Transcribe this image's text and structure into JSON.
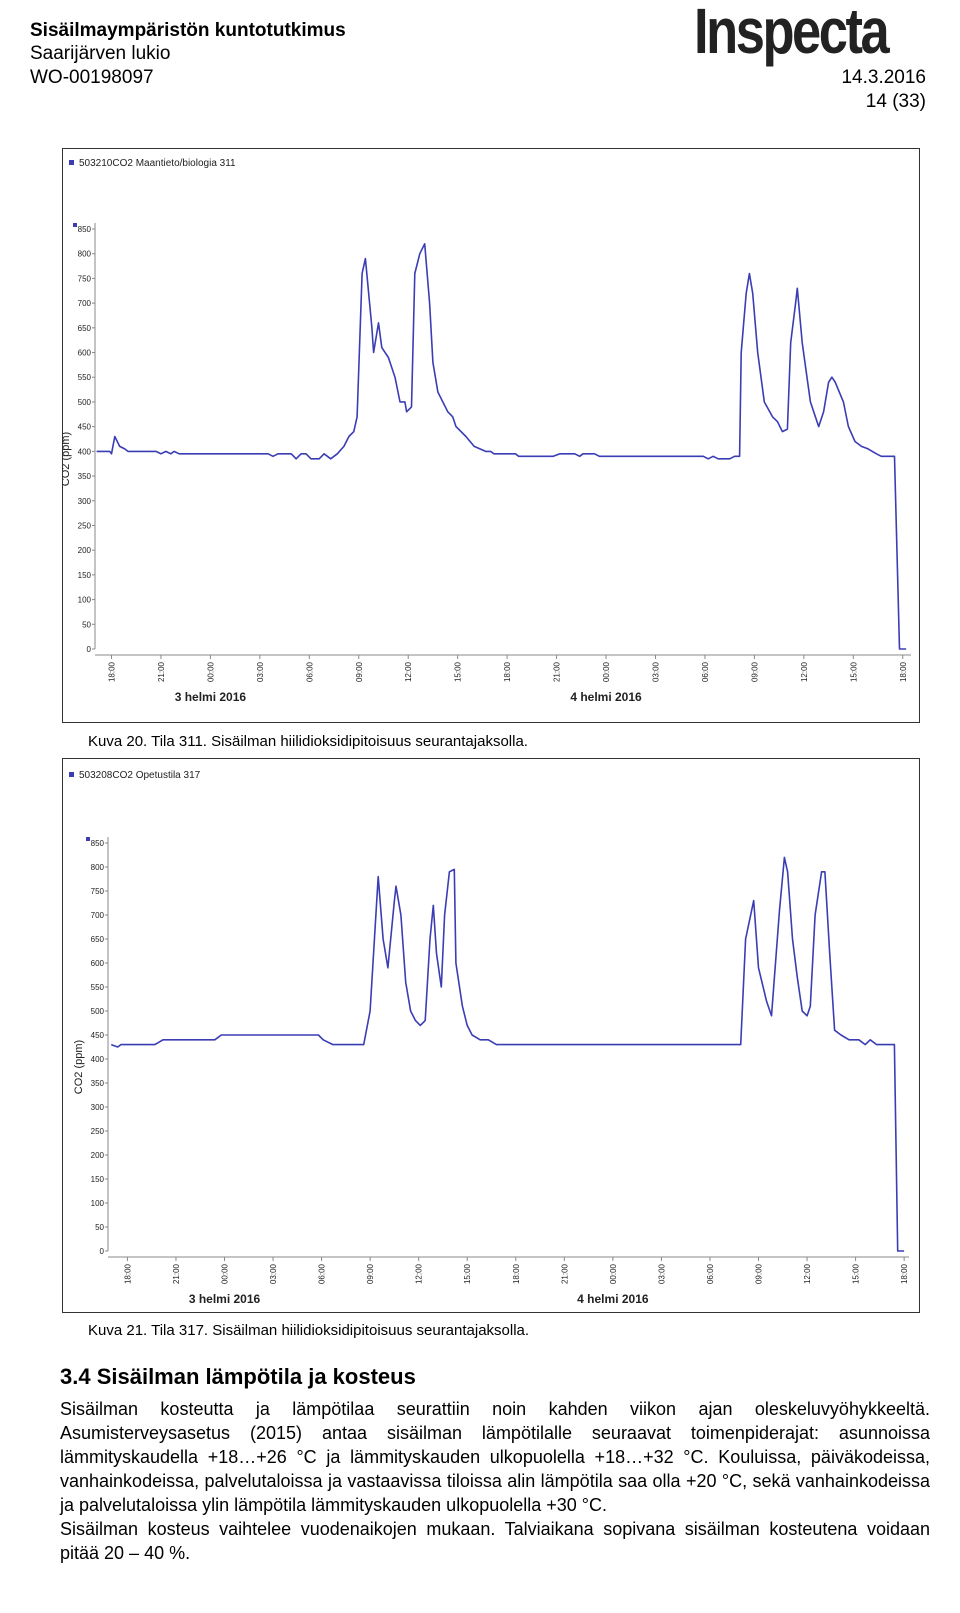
{
  "header": {
    "title": "Sisäilmaympäristön kuntotutkimus",
    "subtitle": "Saarijärven lukio",
    "work_order": "WO-00198097",
    "logo": "Inspecta",
    "date": "14.3.2016",
    "page": "14 (33)"
  },
  "chart_data": [
    {
      "type": "line",
      "series": [
        {
          "name": "503210CO2 Maantieto/biologia 311",
          "color": "#3a3db4",
          "values": [
            400,
            400,
            395,
            430,
            410,
            405,
            400,
            400,
            395,
            400,
            395,
            400,
            395,
            395,
            390,
            395,
            395,
            385,
            395,
            395,
            385,
            385,
            395,
            385,
            395,
            410,
            430,
            440,
            470,
            760,
            790,
            650,
            600,
            660,
            610,
            590,
            550,
            500,
            500,
            480,
            490,
            760,
            800,
            820,
            700,
            580,
            520,
            480,
            470,
            450,
            430,
            410,
            400,
            400,
            395,
            395,
            390,
            390,
            395,
            395,
            390,
            395,
            395,
            390,
            390,
            385,
            390,
            385,
            385,
            390,
            390,
            600,
            720,
            760,
            720,
            600,
            500,
            470,
            460,
            440,
            445,
            620,
            700,
            730,
            620,
            500,
            450,
            480,
            540,
            550,
            540,
            500,
            450,
            420,
            410,
            405,
            395,
            390,
            390,
            0,
            0
          ]
        }
      ],
      "x": [
        -0.9,
        -0.1,
        0,
        0.2,
        0.5,
        0.8,
        1.0,
        2.7,
        3.0,
        3.3,
        3.6,
        3.8,
        4.1,
        9.5,
        9.8,
        10.1,
        10.9,
        11.2,
        11.5,
        11.8,
        12.1,
        12.6,
        12.9,
        13.3,
        13.7,
        14.1,
        14.4,
        14.7,
        14.9,
        15.2,
        15.4,
        15.8,
        15.9,
        16.2,
        16.4,
        16.8,
        17.2,
        17.5,
        17.8,
        17.9,
        18.2,
        18.4,
        18.7,
        19.0,
        19.3,
        19.5,
        19.8,
        20.4,
        20.7,
        20.9,
        21.5,
        22.0,
        22.7,
        23.0,
        23.2,
        24.5,
        24.7,
        26.8,
        27.2,
        28.1,
        28.4,
        28.6,
        29.3,
        29.6,
        35.9,
        36.2,
        36.5,
        36.8,
        37.5,
        37.8,
        38.1,
        38.2,
        38.5,
        38.7,
        38.9,
        39.2,
        39.6,
        40.1,
        40.4,
        40.7,
        41.0,
        41.2,
        41.5,
        41.6,
        41.9,
        42.4,
        42.9,
        43.2,
        43.5,
        43.7,
        43.9,
        44.4,
        44.7,
        45.1,
        45.5,
        45.9,
        46.4,
        46.7,
        47.5,
        47.8,
        48.2
      ],
      "ylabel": "CO2 (ppm)",
      "xlim": [
        -1,
        48.5
      ],
      "ylim": [
        0,
        850
      ],
      "yticks": [
        0,
        50,
        100,
        150,
        200,
        250,
        300,
        350,
        400,
        450,
        500,
        550,
        600,
        650,
        700,
        750,
        800,
        850
      ],
      "xticks": [
        {
          "value": 0,
          "label": "18:00"
        },
        {
          "value": 3,
          "label": "21:00"
        },
        {
          "value": 6,
          "label": "00:00"
        },
        {
          "value": 9,
          "label": "03:00"
        },
        {
          "value": 12,
          "label": "06:00"
        },
        {
          "value": 15,
          "label": "09:00"
        },
        {
          "value": 18,
          "label": "12:00"
        },
        {
          "value": 21,
          "label": "15:00"
        },
        {
          "value": 24,
          "label": "18:00"
        },
        {
          "value": 27,
          "label": "21:00"
        },
        {
          "value": 30,
          "label": "00:00"
        },
        {
          "value": 33,
          "label": "03:00"
        },
        {
          "value": 36,
          "label": "06:00"
        },
        {
          "value": 39,
          "label": "09:00"
        },
        {
          "value": 42,
          "label": "12:00"
        },
        {
          "value": 45,
          "label": "15:00"
        },
        {
          "value": 48,
          "label": "18:00"
        }
      ],
      "date_ticks": [
        {
          "value": 6,
          "label": "3 helmi 2016"
        },
        {
          "value": 30,
          "label": "4 helmi 2016"
        }
      ],
      "grid": false
    },
    {
      "type": "line",
      "series": [
        {
          "name": "503208CO2 Opetustila 317",
          "color": "#3a3db4",
          "values": [
            430,
            425,
            430,
            430,
            440,
            440,
            450,
            450,
            440,
            430,
            430,
            500,
            780,
            650,
            590,
            730,
            760,
            700,
            560,
            500,
            480,
            470,
            480,
            650,
            720,
            620,
            550,
            700,
            790,
            795,
            600,
            510,
            470,
            450,
            440,
            440,
            430,
            430,
            650,
            730,
            590,
            520,
            490,
            710,
            820,
            790,
            650,
            570,
            500,
            490,
            510,
            700,
            790,
            790,
            620,
            460,
            450,
            440,
            440,
            430,
            440,
            430,
            430,
            0,
            0
          ]
        }
      ],
      "x": [
        -1.0,
        -0.6,
        -0.4,
        1.7,
        2.2,
        5.4,
        5.8,
        11.8,
        12.1,
        12.7,
        14.6,
        15.0,
        15.5,
        15.8,
        16.1,
        16.5,
        16.6,
        16.9,
        17.2,
        17.5,
        17.8,
        18.1,
        18.4,
        18.7,
        18.9,
        19.1,
        19.4,
        19.6,
        19.9,
        20.2,
        20.3,
        20.7,
        21.0,
        21.3,
        21.8,
        22.3,
        22.8,
        37.9,
        38.2,
        38.7,
        39.0,
        39.5,
        39.8,
        40.3,
        40.6,
        40.8,
        41.1,
        41.4,
        41.7,
        42.0,
        42.2,
        42.5,
        42.9,
        43.1,
        43.4,
        43.7,
        44.1,
        44.6,
        45.2,
        45.6,
        45.9,
        46.3,
        47.4,
        47.6,
        48.0
      ],
      "ylabel": "CO2 (ppm)",
      "xlim": [
        -1.2,
        48.3
      ],
      "ylim": [
        0,
        850
      ],
      "yticks": [
        0,
        50,
        100,
        150,
        200,
        250,
        300,
        350,
        400,
        450,
        500,
        550,
        600,
        650,
        700,
        750,
        800,
        850
      ],
      "xticks": [
        {
          "value": 0,
          "label": "18:00"
        },
        {
          "value": 3,
          "label": "21:00"
        },
        {
          "value": 6,
          "label": "00:00"
        },
        {
          "value": 9,
          "label": "03:00"
        },
        {
          "value": 12,
          "label": "06:00"
        },
        {
          "value": 15,
          "label": "09:00"
        },
        {
          "value": 18,
          "label": "12:00"
        },
        {
          "value": 21,
          "label": "15:00"
        },
        {
          "value": 24,
          "label": "18:00"
        },
        {
          "value": 27,
          "label": "21:00"
        },
        {
          "value": 30,
          "label": "00:00"
        },
        {
          "value": 33,
          "label": "03:00"
        },
        {
          "value": 36,
          "label": "06:00"
        },
        {
          "value": 39,
          "label": "09:00"
        },
        {
          "value": 42,
          "label": "12:00"
        },
        {
          "value": 45,
          "label": "15:00"
        },
        {
          "value": 48,
          "label": "18:00"
        }
      ],
      "date_ticks": [
        {
          "value": 6,
          "label": "3 helmi 2016"
        },
        {
          "value": 30,
          "label": "4 helmi 2016"
        }
      ],
      "grid": false
    }
  ],
  "captions": [
    "Kuva 20. Tila 311. Sisäilman hiilidioksidipitoisuus seurantajaksolla.",
    "Kuva 21. Tila 317. Sisäilman hiilidioksidipitoisuus seurantajaksolla."
  ],
  "section": {
    "heading": "3.4   Sisäilman lämpötila ja kosteus",
    "paragraphs": [
      "Sisäilman kosteutta ja lämpötilaa seurattiin noin kahden viikon ajan oleskeluvyöhykkeeltä. Asumisterveysasetus (2015) antaa sisäilman lämpötilalle seuraavat toimenpiderajat: asunnoissa lämmityskaudella +18…+26 °C ja lämmityskauden ulkopuolella +18…+32 °C. Kouluissa, päiväkodeissa, vanhainkodeissa, palvelutaloissa ja vastaavissa tiloissa alin lämpötila saa olla +20 °C, sekä vanhainkodeissa ja palvelutaloissa ylin lämpötila lämmityskauden ulkopuolella +30 °C.",
      "Sisäilman kosteus vaihtelee vuodenaikojen mukaan. Talviaikana sopivana sisäilman kosteutena voidaan pitää 20 – 40 %."
    ]
  }
}
